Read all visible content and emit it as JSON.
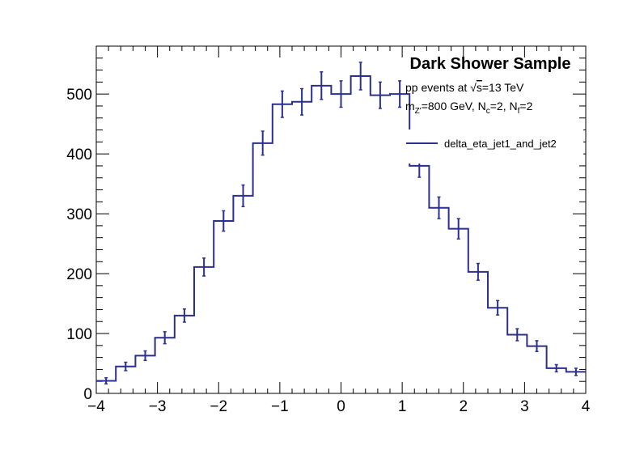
{
  "chart_data": {
    "type": "histogram",
    "title": "Dark Shower Sample",
    "info_lines": {
      "line1_prefix": "pp events at ",
      "line1_sqrt": "√",
      "line1_s": "s",
      "line1_suffix": "=13 TeV",
      "line2_m": "m",
      "line2_msub": "Z'",
      "line2_a": "=800 GeV, N",
      "line2_nc": "c",
      "line2_b": "=2, N",
      "line2_nf": "f",
      "line2_c": "=2"
    },
    "legend": {
      "entries": [
        "delta_eta_jet1_and_jet2"
      ],
      "placement": "top-right"
    },
    "xlim": [
      -4,
      4
    ],
    "ylim": [
      0,
      580
    ],
    "x_ticks": [
      -4,
      -3,
      -2,
      -1,
      0,
      1,
      2,
      3,
      4
    ],
    "x_tick_labels": [
      "−4",
      "−3",
      "−2",
      "−1",
      "0",
      "1",
      "2",
      "3",
      "4"
    ],
    "y_ticks": [
      0,
      100,
      200,
      300,
      400,
      500
    ],
    "y_tick_labels": [
      "0",
      "100",
      "200",
      "300",
      "400",
      "500"
    ],
    "bin_edges": [
      -4.0,
      -3.68,
      -3.36,
      -3.04,
      -2.72,
      -2.4,
      -2.08,
      -1.76,
      -1.44,
      -1.12,
      -0.8,
      -0.48,
      -0.16,
      0.16,
      0.48,
      0.8,
      1.12,
      1.44,
      1.76,
      2.08,
      2.4,
      2.72,
      3.04,
      3.36,
      3.68,
      4.0
    ],
    "values": [
      21,
      45,
      63,
      93,
      130,
      211,
      288,
      330,
      418,
      483,
      487,
      514,
      500,
      530,
      498,
      500,
      380,
      310,
      275,
      203,
      143,
      98,
      79,
      42,
      36
    ],
    "errors": [
      5,
      7,
      8,
      10,
      11,
      15,
      17,
      18,
      20,
      22,
      22,
      23,
      22,
      23,
      22,
      22,
      19,
      18,
      17,
      14,
      12,
      10,
      9,
      6,
      6
    ],
    "color": "#2b2f8f"
  }
}
